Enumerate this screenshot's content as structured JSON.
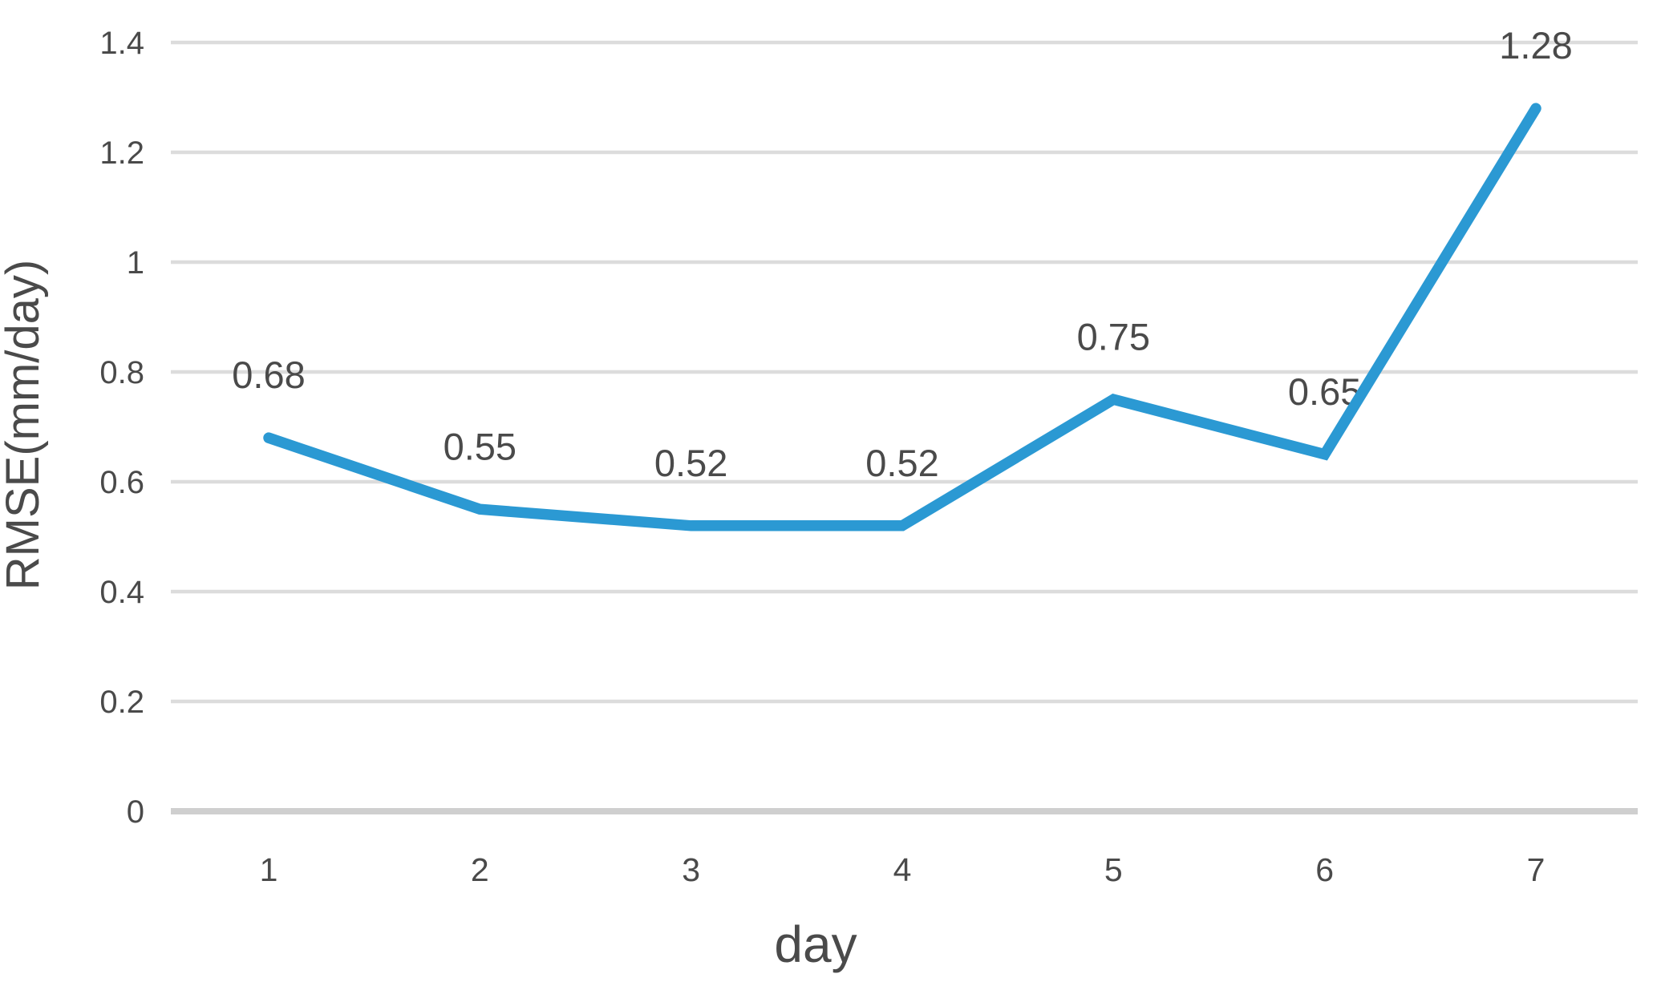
{
  "chart_data": {
    "type": "line",
    "title": "",
    "xlabel": "day",
    "ylabel": "RMSE(mm/day)",
    "categories": [
      1,
      2,
      3,
      4,
      5,
      6,
      7
    ],
    "series": [
      {
        "name": "RMSE",
        "values": [
          0.68,
          0.55,
          0.52,
          0.52,
          0.75,
          0.65,
          1.28
        ]
      }
    ],
    "data_labels": [
      "0.68",
      "0.55",
      "0.52",
      "0.52",
      "0.75",
      "0.65",
      "1.28"
    ],
    "x_tick_labels": [
      "1",
      "2",
      "3",
      "4",
      "5",
      "6",
      "7"
    ],
    "y_ticks": [
      0,
      0.2,
      0.4,
      0.6,
      0.8,
      1,
      1.2,
      1.4
    ],
    "y_tick_labels": [
      "0",
      "0.2",
      "0.4",
      "0.6",
      "0.8",
      "1",
      "1.2",
      "1.4"
    ],
    "ylim": [
      0,
      1.4
    ],
    "grid": "horizontal",
    "legend": "none",
    "colors": {
      "line": "#2b99d3",
      "grid": "#dcdcdc",
      "axis": "#cfcfcf",
      "text": "#4a4a4a"
    }
  }
}
